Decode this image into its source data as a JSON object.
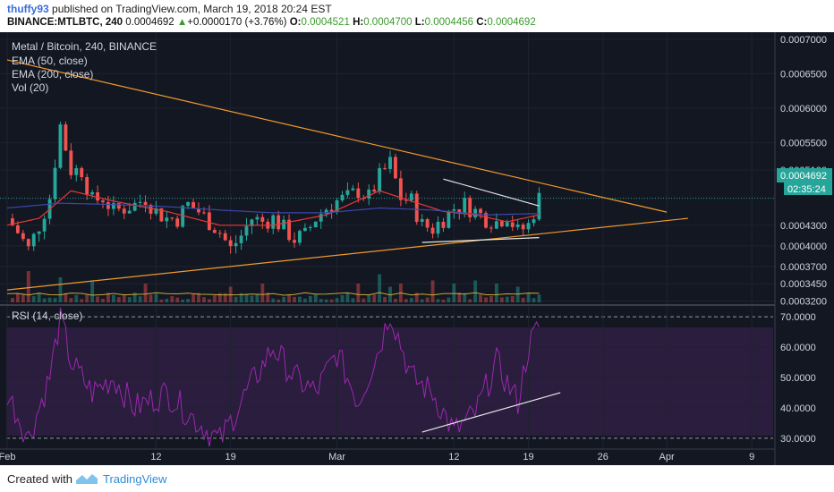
{
  "header": {
    "user": "thuffy93",
    "published": "published on TradingView.com, March 19, 2018 20:24 EST",
    "symbol": "BINANCE:MTLBTC, 240",
    "price": "0.0004692",
    "change_arrow": "▲",
    "change": "+0.0000170 (+3.76%)",
    "o_label": "O:",
    "o_value": "0.0004521",
    "h_label": "H:",
    "h_value": "0.0004700",
    "l_label": "L:",
    "l_value": "0.0004456",
    "c_label": "C:",
    "c_value": "0.0004692"
  },
  "legend": {
    "title": "Metal / Bitcoin, 240, BINANCE",
    "ema50": "EMA (50, close)",
    "ema200": "EMA (200, close)",
    "vol": "Vol (20)",
    "rsi": "RSI (14, close)"
  },
  "price_axis": {
    "ticks": [
      "0.0007000",
      "0.0006500",
      "0.0006000",
      "0.0005500",
      "0.0005100",
      "0.0004300",
      "0.0004000",
      "0.0003700",
      "0.0003450",
      "0.0003200"
    ],
    "last_price": "0.0004692",
    "countdown": "02:35:24"
  },
  "rsi_axis": {
    "ticks": [
      "70.0000",
      "60.0000",
      "50.0000",
      "40.0000",
      "30.0000"
    ]
  },
  "time_axis": {
    "ticks": [
      "Feb",
      "12",
      "19",
      "Mar",
      "12",
      "19",
      "26",
      "Apr",
      "9"
    ]
  },
  "footer": {
    "created": "Created with",
    "brand": "TradingView"
  },
  "colors": {
    "background": "#131722",
    "up": "#26a69a",
    "down": "#ef5350",
    "ema50": "#e53935",
    "ema200": "#3949ab",
    "trendline": "#f09a2a",
    "rsi_line": "#9c27b0",
    "rsi_band": "#2a1d3d",
    "last_price": "#26a69a"
  },
  "chart_data": {
    "type": "candlestick",
    "title": "Metal / Bitcoin, 240, BINANCE",
    "xlabel": "",
    "ylabel": "",
    "price_range": [
      0.000318,
      0.000705
    ],
    "rsi_range": [
      27,
      73
    ],
    "grid": true,
    "x_range": [
      "2018-01-29",
      "2018-04-11"
    ],
    "close_path_days": [
      0,
      1,
      2,
      3,
      4,
      5,
      6,
      7,
      8,
      9,
      10,
      11,
      12,
      13,
      14,
      15,
      16,
      17,
      18,
      19,
      20,
      21,
      22,
      23,
      24,
      25,
      26,
      27,
      28,
      29,
      30,
      31,
      32,
      33,
      34,
      35,
      36,
      37,
      38,
      39,
      40,
      41,
      42,
      43,
      44,
      45,
      46,
      47,
      48,
      49,
      50
    ],
    "close_path_values": [
      0.00044,
      0.00042,
      0.000395,
      0.00043,
      0.00047,
      0.000575,
      0.00051,
      0.00051,
      0.000465,
      0.00047,
      0.00045,
      0.000455,
      0.00046,
      0.00047,
      0.00045,
      0.00044,
      0.00044,
      0.00046,
      0.00045,
      0.000435,
      0.00042,
      0.000395,
      0.000415,
      0.00044,
      0.000435,
      0.00044,
      0.000425,
      0.00041,
      0.000415,
      0.00044,
      0.000455,
      0.000465,
      0.00047,
      0.00048,
      0.00047,
      0.0005,
      0.00052,
      0.00047,
      0.000465,
      0.00043,
      0.000425,
      0.00044,
      0.000455,
      0.00046,
      0.00045,
      0.00044,
      0.000435,
      0.000445,
      0.00042,
      0.00043,
      0.000469
    ],
    "ema50_days": [
      0,
      3,
      6,
      10,
      15,
      20,
      25,
      30,
      35,
      38,
      41,
      44,
      47,
      50
    ],
    "ema50_values": [
      0.00043,
      0.00044,
      0.00048,
      0.000465,
      0.00045,
      0.00043,
      0.00043,
      0.000445,
      0.00048,
      0.000465,
      0.00045,
      0.000445,
      0.000435,
      0.000445
    ],
    "ema200_days": [
      0,
      5,
      10,
      15,
      20,
      25,
      30,
      35,
      40,
      45,
      50
    ],
    "ema200_values": [
      0.000455,
      0.000462,
      0.00046,
      0.000457,
      0.000452,
      0.000448,
      0.000448,
      0.000455,
      0.000452,
      0.000445,
      0.000447
    ],
    "volume_days": [
      2,
      5,
      8,
      13,
      21,
      24,
      33,
      35,
      36,
      37,
      40,
      42,
      44,
      46,
      48
    ],
    "volume_rel": [
      0.5,
      0.4,
      0.35,
      0.3,
      0.25,
      0.3,
      0.3,
      0.45,
      0.25,
      0.3,
      0.35,
      0.3,
      0.35,
      0.3,
      0.25
    ],
    "rsi_days": [
      0,
      2,
      4,
      5,
      6,
      8,
      10,
      12,
      15,
      18,
      20,
      22,
      25,
      27,
      29,
      31,
      33,
      35,
      36,
      38,
      40,
      42,
      44,
      46,
      47,
      48,
      49,
      50
    ],
    "rsi_values": [
      45,
      30,
      50,
      70,
      55,
      45,
      50,
      40,
      45,
      35,
      29,
      42,
      60,
      50,
      45,
      58,
      42,
      60,
      72,
      50,
      45,
      32,
      38,
      55,
      48,
      42,
      60,
      67
    ],
    "trendlines": [
      {
        "name": "upper",
        "from": [
          "2018-01-29",
          0.00067
        ],
        "to": [
          "2018-04-01",
          0.000449
        ]
      },
      {
        "name": "lower",
        "from": [
          "2018-01-29",
          0.000336
        ],
        "to": [
          "2018-04-03",
          0.00044
        ]
      },
      {
        "name": "channel-top",
        "from": [
          "2018-03-11",
          0.000497
        ],
        "to": [
          "2018-03-20",
          0.000458
        ]
      },
      {
        "name": "channel-bottom",
        "from": [
          "2018-03-09",
          0.000405
        ],
        "to": [
          "2018-03-20",
          0.000412
        ]
      },
      {
        "name": "rsi-support",
        "from": [
          "2018-03-09",
          32
        ],
        "to": [
          "2018-03-22",
          45
        ]
      }
    ]
  }
}
